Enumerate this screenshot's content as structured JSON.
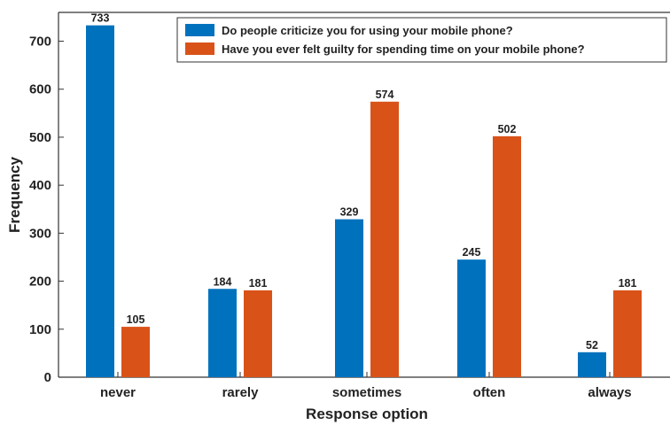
{
  "chart_data": {
    "type": "bar",
    "title": "",
    "xlabel": "Response option",
    "ylabel": "Frequency",
    "ylim": [
      0,
      760
    ],
    "yticks": [
      0,
      100,
      200,
      300,
      400,
      500,
      600,
      700
    ],
    "categories": [
      "never",
      "rarely",
      "sometimes",
      "often",
      "always"
    ],
    "series": [
      {
        "name": "Do people criticize you for using your mobile phone?",
        "color": "#0072bd",
        "values": [
          733,
          184,
          329,
          245,
          52
        ]
      },
      {
        "name": "Have you ever felt guilty for spending time on your mobile phone?",
        "color": "#d95319",
        "values": [
          105,
          181,
          574,
          502,
          181
        ]
      }
    ],
    "legend_position": "top-right",
    "grid": false,
    "data_labels": true
  }
}
